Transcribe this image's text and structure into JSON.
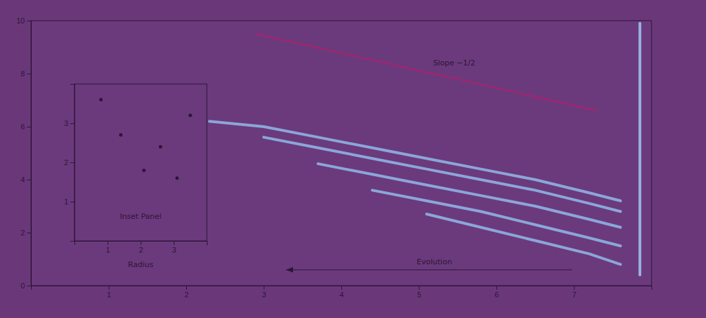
{
  "chart_data": [
    {
      "type": "line",
      "xlim": [
        0,
        8
      ],
      "xticks": [
        1,
        2,
        3,
        4,
        5,
        6,
        7
      ],
      "ylim": [
        0,
        10
      ],
      "yticks": [
        0,
        2,
        4,
        6,
        8,
        10
      ],
      "annotations": [
        "Slope −1/2",
        "Evolution"
      ],
      "series": [
        {
          "color": "#8fb3e3",
          "x": [
            2.3,
            3,
            3.7,
            4.4,
            5.1,
            5.8,
            6.5,
            7.2,
            7.6
          ],
          "values": [
            6.2,
            6.0,
            5.6,
            5.2,
            4.8,
            4.4,
            4.0,
            3.5,
            3.2
          ]
        },
        {
          "color": "#8fb3e3",
          "x": [
            2.3,
            3,
            3.7,
            4.4,
            5.1,
            5.8,
            6.5,
            7.2,
            7.6
          ],
          "values": [
            null,
            5.6,
            5.2,
            4.8,
            4.4,
            4.0,
            3.6,
            3.1,
            2.8
          ]
        },
        {
          "color": "#8fb3e3",
          "x": [
            2.3,
            3,
            3.7,
            4.4,
            5.1,
            5.8,
            6.5,
            7.2,
            7.6
          ],
          "values": [
            null,
            null,
            4.6,
            4.2,
            3.8,
            3.4,
            3.0,
            2.5,
            2.2
          ]
        },
        {
          "color": "#8fb3e3",
          "x": [
            2.3,
            3,
            3.7,
            4.4,
            5.1,
            5.8,
            6.5,
            7.2,
            7.6
          ],
          "values": [
            null,
            null,
            null,
            3.6,
            3.2,
            2.8,
            2.3,
            1.8,
            1.5
          ]
        },
        {
          "color": "#8fb3e3",
          "x": [
            2.3,
            3,
            3.7,
            4.4,
            5.1,
            5.8,
            6.5,
            7.2,
            7.6
          ],
          "values": [
            null,
            null,
            null,
            null,
            2.7,
            2.2,
            1.7,
            1.2,
            0.8
          ]
        },
        {
          "color": "#9cc0ea",
          "x": [
            7.85,
            7.85
          ],
          "values": [
            0.4,
            9.9
          ]
        },
        {
          "color": "#b0206a",
          "x": [
            2.9,
            7.3
          ],
          "values": [
            9.5,
            6.6
          ]
        }
      ]
    },
    {
      "type": "scatter",
      "title": "Inset Panel",
      "xlabel": "Radius",
      "xlim": [
        0,
        4
      ],
      "xticks": [
        1,
        2,
        3
      ],
      "ylim": [
        0,
        4
      ],
      "yticks": [
        1,
        2,
        3
      ],
      "color": "#2d1538",
      "x": [
        0.8,
        1.4,
        2.1,
        2.6,
        3.1,
        3.5
      ],
      "values": [
        3.6,
        2.7,
        1.8,
        2.4,
        1.6,
        3.2
      ]
    }
  ]
}
